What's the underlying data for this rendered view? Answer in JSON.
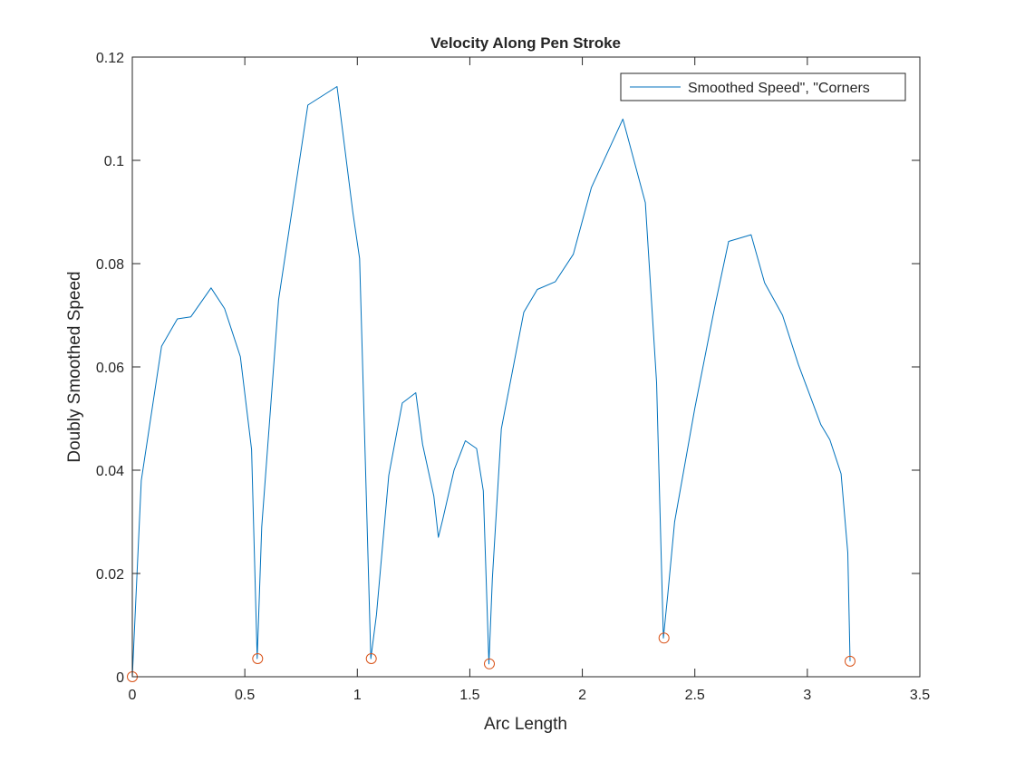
{
  "chart_data": {
    "type": "line",
    "title": "Velocity Along Pen Stroke",
    "xlabel": "Arc Length",
    "ylabel": "Doubly Smoothed Speed",
    "xlim": [
      0,
      3.5
    ],
    "ylim": [
      0,
      0.12
    ],
    "x_ticks": [
      "0",
      "0.5",
      "1",
      "1.5",
      "2",
      "2.5",
      "3",
      "3.5"
    ],
    "y_ticks": [
      "0",
      "0.02",
      "0.04",
      "0.06",
      "0.08",
      "0.1",
      "0.12"
    ],
    "grid": false,
    "legend_position": "top-right",
    "legend_label": "Smoothed Speed\", \"Corners",
    "series": [
      {
        "kind": "line",
        "color": "#0072BD",
        "x": [
          0.0,
          0.04,
          0.13,
          0.2,
          0.26,
          0.35,
          0.41,
          0.48,
          0.53,
          0.555,
          0.575,
          0.65,
          0.78,
          0.91,
          0.98,
          1.01,
          1.04,
          1.06,
          1.085,
          1.14,
          1.2,
          1.26,
          1.29,
          1.34,
          1.36,
          1.38,
          1.43,
          1.48,
          1.53,
          1.56,
          1.585,
          1.6,
          1.64,
          1.74,
          1.8,
          1.88,
          1.96,
          2.04,
          2.18,
          2.28,
          2.33,
          2.36,
          2.38,
          2.41,
          2.5,
          2.59,
          2.65,
          2.75,
          2.81,
          2.89,
          2.96,
          3.06,
          3.1,
          3.15,
          3.18,
          3.19
        ],
        "y": [
          0.0,
          0.038,
          0.064,
          0.0693,
          0.0697,
          0.0753,
          0.0713,
          0.062,
          0.044,
          0.0035,
          0.029,
          0.073,
          0.1107,
          0.1143,
          0.09,
          0.081,
          0.035,
          0.0035,
          0.012,
          0.039,
          0.053,
          0.055,
          0.045,
          0.035,
          0.027,
          0.0305,
          0.04,
          0.0457,
          0.0442,
          0.036,
          0.0025,
          0.019,
          0.048,
          0.0706,
          0.075,
          0.0765,
          0.0818,
          0.0947,
          0.108,
          0.0918,
          0.057,
          0.0075,
          0.016,
          0.03,
          0.052,
          0.072,
          0.0843,
          0.0856,
          0.0763,
          0.07,
          0.0605,
          0.0488,
          0.0459,
          0.0393,
          0.024,
          0.003
        ]
      },
      {
        "kind": "markers",
        "color": "#D95319",
        "x": [
          0.0,
          0.557,
          1.062,
          1.587,
          2.363,
          3.19
        ],
        "y": [
          0.0,
          0.0035,
          0.0035,
          0.0025,
          0.0075,
          0.003
        ]
      }
    ]
  }
}
